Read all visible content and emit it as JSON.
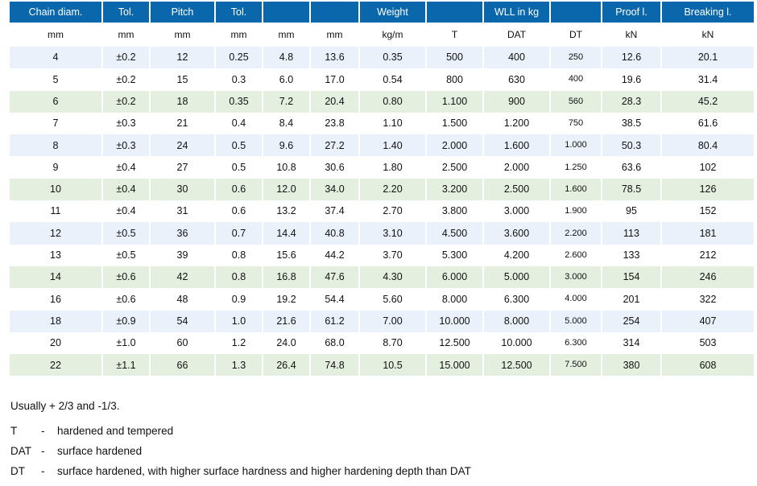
{
  "table": {
    "headers": [
      "Chain diam.",
      "Tol.",
      "Pitch",
      "Tol.",
      "",
      "",
      "Weight",
      "",
      "WLL in kg",
      "",
      "Proof l.",
      "Breaking l."
    ],
    "units": [
      "mm",
      "mm",
      "mm",
      "mm",
      "mm",
      "mm",
      "kg/m",
      "T",
      "DAT",
      "DT",
      "kN",
      "kN"
    ],
    "row_colors": {
      "white": "#ffffff",
      "blue": "#eaf1fa",
      "green": "#e5efe0",
      "header": "#0a67ab"
    },
    "rows": [
      {
        "band": "blue",
        "cells": [
          "4",
          "±0.2",
          "12",
          "0.25",
          "4.8",
          "13.6",
          "0.35",
          "500",
          "400",
          "250",
          "12.6",
          "20.1"
        ]
      },
      {
        "band": "white",
        "cells": [
          "5",
          "±0.2",
          "15",
          "0.3",
          "6.0",
          "17.0",
          "0.54",
          "800",
          "630",
          "400",
          "19.6",
          "31.4"
        ]
      },
      {
        "band": "green",
        "cells": [
          "6",
          "±0.2",
          "18",
          "0.35",
          "7.2",
          "20.4",
          "0.80",
          "1.100",
          "900",
          "560",
          "28.3",
          "45.2"
        ]
      },
      {
        "band": "white",
        "cells": [
          "7",
          "±0.3",
          "21",
          "0.4",
          "8.4",
          "23.8",
          "1.10",
          "1.500",
          "1.200",
          "750",
          "38.5",
          "61.6"
        ]
      },
      {
        "band": "blue",
        "cells": [
          "8",
          "±0.3",
          "24",
          "0.5",
          "9.6",
          "27.2",
          "1.40",
          "2.000",
          "1.600",
          "1.000",
          "50.3",
          "80.4"
        ]
      },
      {
        "band": "white",
        "cells": [
          "9",
          "±0.4",
          "27",
          "0.5",
          "10.8",
          "30.6",
          "1.80",
          "2.500",
          "2.000",
          "1.250",
          "63.6",
          "102"
        ]
      },
      {
        "band": "green",
        "cells": [
          "10",
          "±0.4",
          "30",
          "0.6",
          "12.0",
          "34.0",
          "2.20",
          "3.200",
          "2.500",
          "1.600",
          "78.5",
          "126"
        ]
      },
      {
        "band": "white",
        "cells": [
          "11",
          "±0.4",
          "31",
          "0.6",
          "13.2",
          "37.4",
          "2.70",
          "3.800",
          "3.000",
          "1.900",
          "95",
          "152"
        ]
      },
      {
        "band": "blue",
        "cells": [
          "12",
          "±0.5",
          "36",
          "0.7",
          "14.4",
          "40.8",
          "3.10",
          "4.500",
          "3.600",
          "2.200",
          "113",
          "181"
        ]
      },
      {
        "band": "white",
        "cells": [
          "13",
          "±0.5",
          "39",
          "0.8",
          "15.6",
          "44.2",
          "3.70",
          "5.300",
          "4.200",
          "2.600",
          "133",
          "212"
        ]
      },
      {
        "band": "green",
        "cells": [
          "14",
          "±0.6",
          "42",
          "0.8",
          "16.8",
          "47.6",
          "4.30",
          "6.000",
          "5.000",
          "3.000",
          "154",
          "246"
        ]
      },
      {
        "band": "white",
        "cells": [
          "16",
          "±0.6",
          "48",
          "0.9",
          "19.2",
          "54.4",
          "5.60",
          "8.000",
          "6.300",
          "4.000",
          "201",
          "322"
        ]
      },
      {
        "band": "blue",
        "cells": [
          "18",
          "±0.9",
          "54",
          "1.0",
          "21.6",
          "61.2",
          "7.00",
          "10.000",
          "8.000",
          "5.000",
          "254",
          "407"
        ]
      },
      {
        "band": "white",
        "cells": [
          "20",
          "±1.0",
          "60",
          "1.2",
          "24.0",
          "68.0",
          "8.70",
          "12.500",
          "10.000",
          "6.300",
          "314",
          "503"
        ]
      },
      {
        "band": "green",
        "cells": [
          "22",
          "±1.1",
          "66",
          "1.3",
          "26.4",
          "74.8",
          "10.5",
          "15.000",
          "12.500",
          "7.500",
          "380",
          "608"
        ]
      }
    ]
  },
  "notes": {
    "tolerance": "Usually + 2/3 and -1/3.",
    "legend": [
      {
        "key": "T",
        "dash": "-",
        "text": "hardened and tempered"
      },
      {
        "key": "DAT",
        "dash": "-",
        "text": "surface hardened"
      },
      {
        "key": "DT",
        "dash": "-",
        "text": "surface hardened, with higher surface hardness and higher hardening depth than DAT"
      }
    ]
  }
}
